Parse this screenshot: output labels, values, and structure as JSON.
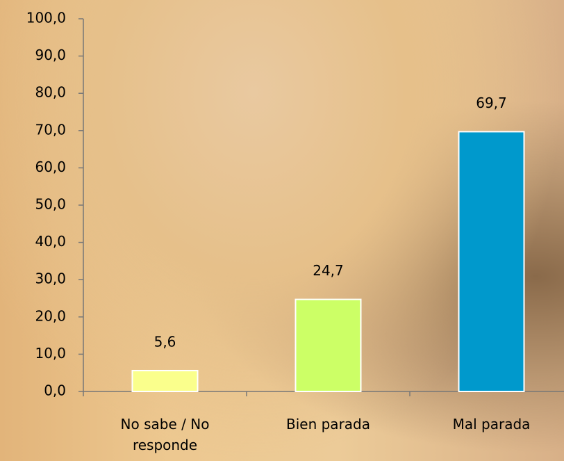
{
  "chart_data": {
    "type": "bar",
    "categories": [
      "No sabe / No responde",
      "Bien parada",
      "Mal parada"
    ],
    "values": [
      5.6,
      24.7,
      69.7
    ],
    "value_labels": [
      "5,6",
      "24,7",
      "69,7"
    ],
    "colors": [
      "#faff8c",
      "#ccff66",
      "#0099cc"
    ],
    "ylim": [
      0,
      100
    ],
    "yticks": [
      {
        "value": 0,
        "label": "0,0"
      },
      {
        "value": 10,
        "label": "10,0"
      },
      {
        "value": 20,
        "label": "20,0"
      },
      {
        "value": 30,
        "label": "30,0"
      },
      {
        "value": 40,
        "label": "40,0"
      },
      {
        "value": 50,
        "label": "50,0"
      },
      {
        "value": 60,
        "label": "60,0"
      },
      {
        "value": 70,
        "label": "70,0"
      },
      {
        "value": 80,
        "label": "80,0"
      },
      {
        "value": 90,
        "label": "90,0"
      },
      {
        "value": 100,
        "label": "100,0"
      }
    ],
    "grid": false
  }
}
